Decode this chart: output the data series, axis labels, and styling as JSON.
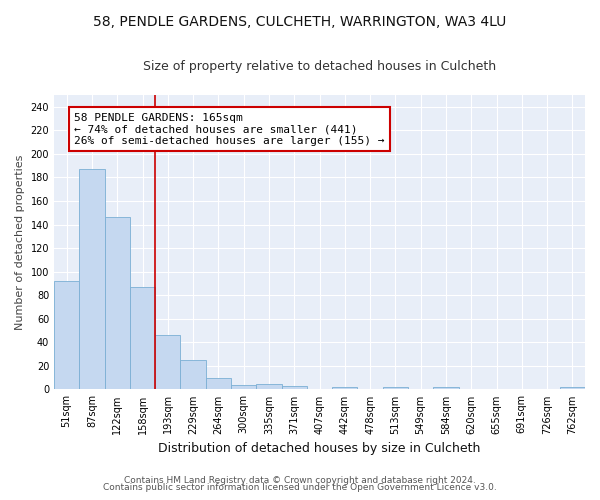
{
  "title_line1": "58, PENDLE GARDENS, CULCHETH, WARRINGTON, WA3 4LU",
  "title_line2": "Size of property relative to detached houses in Culcheth",
  "xlabel": "Distribution of detached houses by size in Culcheth",
  "ylabel": "Number of detached properties",
  "categories": [
    "51sqm",
    "87sqm",
    "122sqm",
    "158sqm",
    "193sqm",
    "229sqm",
    "264sqm",
    "300sqm",
    "335sqm",
    "371sqm",
    "407sqm",
    "442sqm",
    "478sqm",
    "513sqm",
    "549sqm",
    "584sqm",
    "620sqm",
    "655sqm",
    "691sqm",
    "726sqm",
    "762sqm"
  ],
  "values": [
    92,
    187,
    146,
    87,
    46,
    25,
    10,
    4,
    5,
    3,
    0,
    2,
    0,
    2,
    0,
    2,
    0,
    0,
    0,
    0,
    2
  ],
  "bar_color": "#c5d8f0",
  "bar_edge_color": "#7bafd4",
  "redline_x": 3.5,
  "annotation_text": "58 PENDLE GARDENS: 165sqm\n← 74% of detached houses are smaller (441)\n26% of semi-detached houses are larger (155) →",
  "annotation_box_color": "#ffffff",
  "annotation_box_edge_color": "#cc0000",
  "redline_color": "#cc0000",
  "ylim": [
    0,
    250
  ],
  "yticks": [
    0,
    20,
    40,
    60,
    80,
    100,
    120,
    140,
    160,
    180,
    200,
    220,
    240
  ],
  "footer_line1": "Contains HM Land Registry data © Crown copyright and database right 2024.",
  "footer_line2": "Contains public sector information licensed under the Open Government Licence v3.0.",
  "bg_color": "#ffffff",
  "plot_bg_color": "#e8eef8",
  "title_fontsize": 10,
  "subtitle_fontsize": 9,
  "ylabel_fontsize": 8,
  "xlabel_fontsize": 9,
  "tick_fontsize": 7,
  "annotation_fontsize": 8,
  "footer_fontsize": 6.5
}
